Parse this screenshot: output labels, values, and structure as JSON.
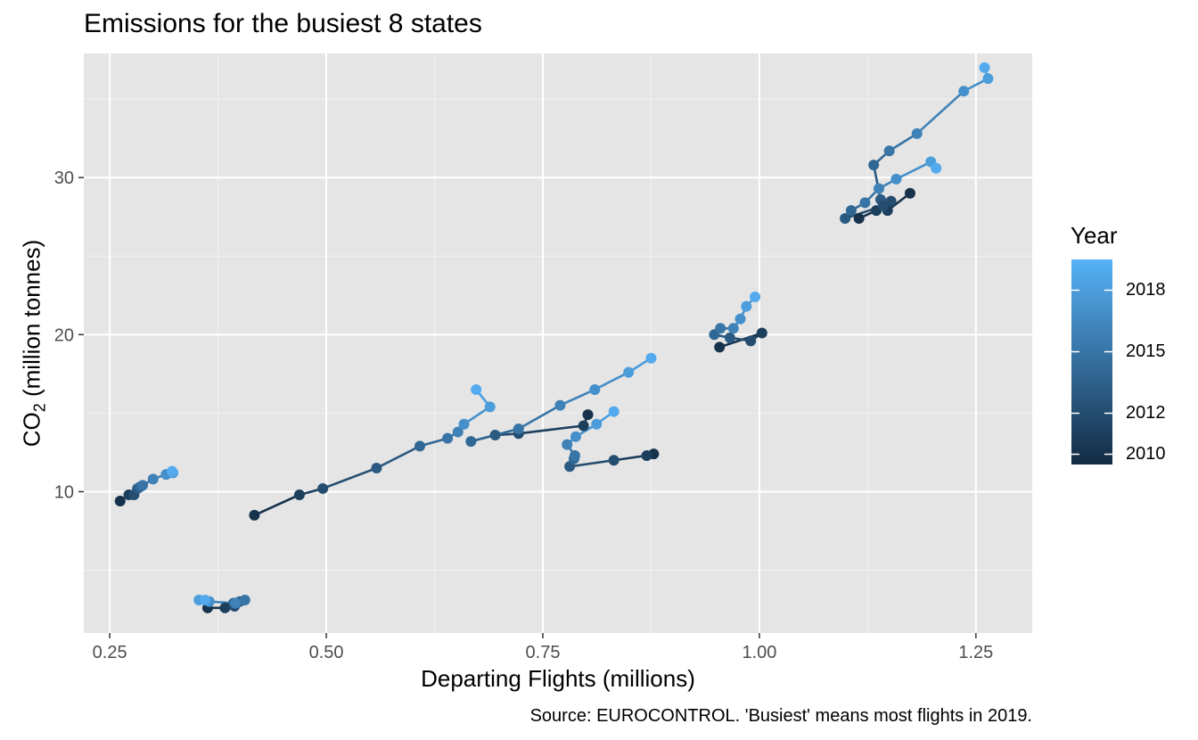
{
  "chart_data": {
    "type": "scatter",
    "title": "Emissions for the busiest 8 states",
    "xlabel": "Departing Flights (millions)",
    "ylabel": {
      "prefix": "CO",
      "subscript": "2",
      "suffix": "  (million tonnes)"
    },
    "caption": "Source: EUROCONTROL. 'Busiest' means most flights in 2019.",
    "xlim": [
      0.22,
      1.315
    ],
    "ylim": [
      1,
      37.9
    ],
    "x_ticks": [
      0.25,
      0.5,
      0.75,
      1.0,
      1.25
    ],
    "x_tick_labels": [
      "0.25",
      "0.50",
      "0.75",
      "1.00",
      "1.25"
    ],
    "y_ticks": [
      10,
      20,
      30
    ],
    "y_tick_labels": [
      "10",
      "20",
      "30"
    ],
    "grid": true,
    "panel_background": "#E5E5E5",
    "legend": {
      "title": "Year",
      "placement": "right",
      "range": [
        2009.5,
        2019.5
      ],
      "ticks": [
        2010,
        2012,
        2015,
        2018
      ],
      "low_color": "#132B43",
      "high_color": "#56B1F7"
    },
    "series": [
      {
        "years": [
          2010,
          2011,
          2012,
          2013,
          2014,
          2015,
          2016,
          2017,
          2018,
          2019
        ],
        "x": [
          1.115,
          1.135,
          1.152,
          1.14,
          1.132,
          1.15,
          1.182,
          1.236,
          1.264,
          1.26
        ],
        "y": [
          27.4,
          27.9,
          28.5,
          28.6,
          30.8,
          31.7,
          32.8,
          35.5,
          36.3,
          37.0
        ]
      },
      {
        "years": [
          2010,
          2011,
          2012,
          2013,
          2014,
          2015,
          2016,
          2017,
          2018,
          2019
        ],
        "x": [
          1.174,
          1.148,
          1.143,
          1.099,
          1.106,
          1.122,
          1.138,
          1.158,
          1.198,
          1.204
        ],
        "y": [
          29.0,
          27.9,
          28.2,
          27.4,
          27.9,
          28.4,
          29.3,
          29.9,
          31.0,
          30.6
        ]
      },
      {
        "years": [
          2010,
          2011,
          2012,
          2013,
          2014,
          2015,
          2016,
          2017,
          2018,
          2019
        ],
        "x": [
          0.954,
          1.003,
          0.99,
          0.966,
          0.948,
          0.955,
          0.97,
          0.978,
          0.985,
          0.995
        ],
        "y": [
          19.2,
          20.1,
          19.6,
          19.8,
          20.0,
          20.4,
          20.4,
          21.0,
          21.8,
          22.4
        ]
      },
      {
        "years": [
          2010,
          2011,
          2012,
          2013,
          2014,
          2015,
          2016,
          2017,
          2018,
          2019
        ],
        "x": [
          0.417,
          0.469,
          0.496,
          0.558,
          0.608,
          0.64,
          0.652,
          0.659,
          0.689,
          0.673
        ],
        "y": [
          8.5,
          9.8,
          10.2,
          11.5,
          12.9,
          13.4,
          13.8,
          14.3,
          15.4,
          16.5
        ]
      },
      {
        "years": [
          2010,
          2011,
          2012,
          2013,
          2014,
          2015,
          2016,
          2017,
          2018,
          2019
        ],
        "x": [
          0.802,
          0.797,
          0.722,
          0.695,
          0.667,
          0.722,
          0.77,
          0.81,
          0.849,
          0.875
        ],
        "y": [
          14.9,
          14.2,
          13.7,
          13.6,
          13.2,
          14.0,
          15.5,
          16.5,
          17.6,
          18.5
        ]
      },
      {
        "years": [
          2010,
          2011,
          2012,
          2013,
          2014,
          2015,
          2016,
          2017,
          2018,
          2019
        ],
        "x": [
          0.878,
          0.87,
          0.832,
          0.781,
          0.786,
          0.787,
          0.778,
          0.788,
          0.812,
          0.832
        ],
        "y": [
          12.4,
          12.3,
          12.0,
          11.6,
          12.1,
          12.3,
          13.0,
          13.5,
          14.3,
          15.1
        ]
      },
      {
        "years": [
          2010,
          2011,
          2012,
          2013,
          2014,
          2015,
          2016,
          2017,
          2018,
          2019
        ],
        "x": [
          0.262,
          0.272,
          0.278,
          0.282,
          0.285,
          0.288,
          0.3,
          0.315,
          0.323,
          0.322
        ],
        "y": [
          9.4,
          9.8,
          9.8,
          10.2,
          10.3,
          10.4,
          10.8,
          11.1,
          11.2,
          11.3
        ]
      },
      {
        "years": [
          2010,
          2011,
          2012,
          2013,
          2014,
          2015,
          2016,
          2017,
          2018,
          2019
        ],
        "x": [
          0.363,
          0.383,
          0.394,
          0.393,
          0.4,
          0.406,
          0.395,
          0.365,
          0.353,
          0.36
        ],
        "y": [
          2.6,
          2.6,
          2.7,
          2.9,
          3.0,
          3.1,
          2.9,
          3.0,
          3.1,
          3.1
        ]
      }
    ]
  }
}
